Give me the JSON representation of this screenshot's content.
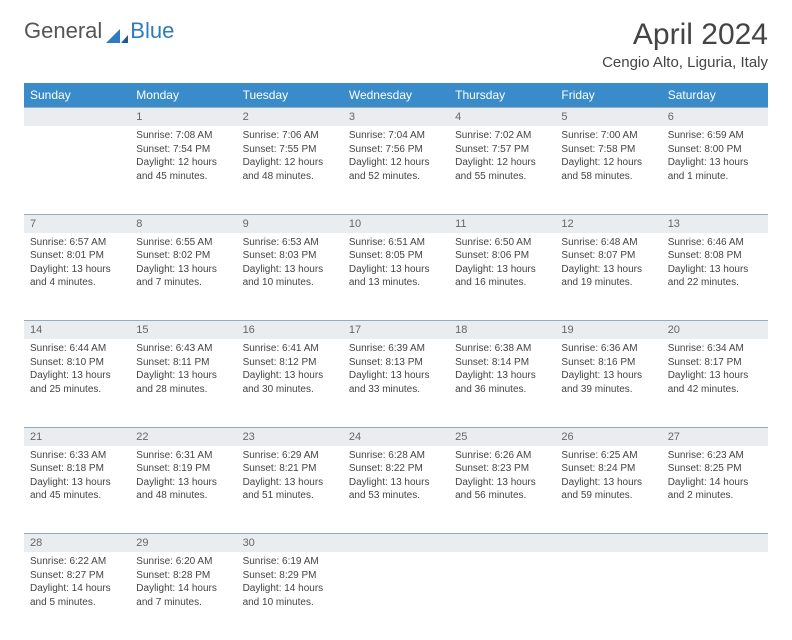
{
  "logo": {
    "part1": "General",
    "part2": "Blue"
  },
  "title": "April 2024",
  "location": "Cengio Alto, Liguria, Italy",
  "colors": {
    "header_bg": "#3a8bc9",
    "header_text": "#ffffff",
    "daynum_bg": "#e9edf0",
    "daynum_border": "#99aabb",
    "text": "#444444",
    "logo_gray": "#555555",
    "logo_blue": "#2f7bbf"
  },
  "weekdays": [
    "Sunday",
    "Monday",
    "Tuesday",
    "Wednesday",
    "Thursday",
    "Friday",
    "Saturday"
  ],
  "weeks": [
    [
      null,
      {
        "n": "1",
        "sr": "Sunrise: 7:08 AM",
        "ss": "Sunset: 7:54 PM",
        "d1": "Daylight: 12 hours",
        "d2": "and 45 minutes."
      },
      {
        "n": "2",
        "sr": "Sunrise: 7:06 AM",
        "ss": "Sunset: 7:55 PM",
        "d1": "Daylight: 12 hours",
        "d2": "and 48 minutes."
      },
      {
        "n": "3",
        "sr": "Sunrise: 7:04 AM",
        "ss": "Sunset: 7:56 PM",
        "d1": "Daylight: 12 hours",
        "d2": "and 52 minutes."
      },
      {
        "n": "4",
        "sr": "Sunrise: 7:02 AM",
        "ss": "Sunset: 7:57 PM",
        "d1": "Daylight: 12 hours",
        "d2": "and 55 minutes."
      },
      {
        "n": "5",
        "sr": "Sunrise: 7:00 AM",
        "ss": "Sunset: 7:58 PM",
        "d1": "Daylight: 12 hours",
        "d2": "and 58 minutes."
      },
      {
        "n": "6",
        "sr": "Sunrise: 6:59 AM",
        "ss": "Sunset: 8:00 PM",
        "d1": "Daylight: 13 hours",
        "d2": "and 1 minute."
      }
    ],
    [
      {
        "n": "7",
        "sr": "Sunrise: 6:57 AM",
        "ss": "Sunset: 8:01 PM",
        "d1": "Daylight: 13 hours",
        "d2": "and 4 minutes."
      },
      {
        "n": "8",
        "sr": "Sunrise: 6:55 AM",
        "ss": "Sunset: 8:02 PM",
        "d1": "Daylight: 13 hours",
        "d2": "and 7 minutes."
      },
      {
        "n": "9",
        "sr": "Sunrise: 6:53 AM",
        "ss": "Sunset: 8:03 PM",
        "d1": "Daylight: 13 hours",
        "d2": "and 10 minutes."
      },
      {
        "n": "10",
        "sr": "Sunrise: 6:51 AM",
        "ss": "Sunset: 8:05 PM",
        "d1": "Daylight: 13 hours",
        "d2": "and 13 minutes."
      },
      {
        "n": "11",
        "sr": "Sunrise: 6:50 AM",
        "ss": "Sunset: 8:06 PM",
        "d1": "Daylight: 13 hours",
        "d2": "and 16 minutes."
      },
      {
        "n": "12",
        "sr": "Sunrise: 6:48 AM",
        "ss": "Sunset: 8:07 PM",
        "d1": "Daylight: 13 hours",
        "d2": "and 19 minutes."
      },
      {
        "n": "13",
        "sr": "Sunrise: 6:46 AM",
        "ss": "Sunset: 8:08 PM",
        "d1": "Daylight: 13 hours",
        "d2": "and 22 minutes."
      }
    ],
    [
      {
        "n": "14",
        "sr": "Sunrise: 6:44 AM",
        "ss": "Sunset: 8:10 PM",
        "d1": "Daylight: 13 hours",
        "d2": "and 25 minutes."
      },
      {
        "n": "15",
        "sr": "Sunrise: 6:43 AM",
        "ss": "Sunset: 8:11 PM",
        "d1": "Daylight: 13 hours",
        "d2": "and 28 minutes."
      },
      {
        "n": "16",
        "sr": "Sunrise: 6:41 AM",
        "ss": "Sunset: 8:12 PM",
        "d1": "Daylight: 13 hours",
        "d2": "and 30 minutes."
      },
      {
        "n": "17",
        "sr": "Sunrise: 6:39 AM",
        "ss": "Sunset: 8:13 PM",
        "d1": "Daylight: 13 hours",
        "d2": "and 33 minutes."
      },
      {
        "n": "18",
        "sr": "Sunrise: 6:38 AM",
        "ss": "Sunset: 8:14 PM",
        "d1": "Daylight: 13 hours",
        "d2": "and 36 minutes."
      },
      {
        "n": "19",
        "sr": "Sunrise: 6:36 AM",
        "ss": "Sunset: 8:16 PM",
        "d1": "Daylight: 13 hours",
        "d2": "and 39 minutes."
      },
      {
        "n": "20",
        "sr": "Sunrise: 6:34 AM",
        "ss": "Sunset: 8:17 PM",
        "d1": "Daylight: 13 hours",
        "d2": "and 42 minutes."
      }
    ],
    [
      {
        "n": "21",
        "sr": "Sunrise: 6:33 AM",
        "ss": "Sunset: 8:18 PM",
        "d1": "Daylight: 13 hours",
        "d2": "and 45 minutes."
      },
      {
        "n": "22",
        "sr": "Sunrise: 6:31 AM",
        "ss": "Sunset: 8:19 PM",
        "d1": "Daylight: 13 hours",
        "d2": "and 48 minutes."
      },
      {
        "n": "23",
        "sr": "Sunrise: 6:29 AM",
        "ss": "Sunset: 8:21 PM",
        "d1": "Daylight: 13 hours",
        "d2": "and 51 minutes."
      },
      {
        "n": "24",
        "sr": "Sunrise: 6:28 AM",
        "ss": "Sunset: 8:22 PM",
        "d1": "Daylight: 13 hours",
        "d2": "and 53 minutes."
      },
      {
        "n": "25",
        "sr": "Sunrise: 6:26 AM",
        "ss": "Sunset: 8:23 PM",
        "d1": "Daylight: 13 hours",
        "d2": "and 56 minutes."
      },
      {
        "n": "26",
        "sr": "Sunrise: 6:25 AM",
        "ss": "Sunset: 8:24 PM",
        "d1": "Daylight: 13 hours",
        "d2": "and 59 minutes."
      },
      {
        "n": "27",
        "sr": "Sunrise: 6:23 AM",
        "ss": "Sunset: 8:25 PM",
        "d1": "Daylight: 14 hours",
        "d2": "and 2 minutes."
      }
    ],
    [
      {
        "n": "28",
        "sr": "Sunrise: 6:22 AM",
        "ss": "Sunset: 8:27 PM",
        "d1": "Daylight: 14 hours",
        "d2": "and 5 minutes."
      },
      {
        "n": "29",
        "sr": "Sunrise: 6:20 AM",
        "ss": "Sunset: 8:28 PM",
        "d1": "Daylight: 14 hours",
        "d2": "and 7 minutes."
      },
      {
        "n": "30",
        "sr": "Sunrise: 6:19 AM",
        "ss": "Sunset: 8:29 PM",
        "d1": "Daylight: 14 hours",
        "d2": "and 10 minutes."
      },
      null,
      null,
      null,
      null
    ]
  ]
}
